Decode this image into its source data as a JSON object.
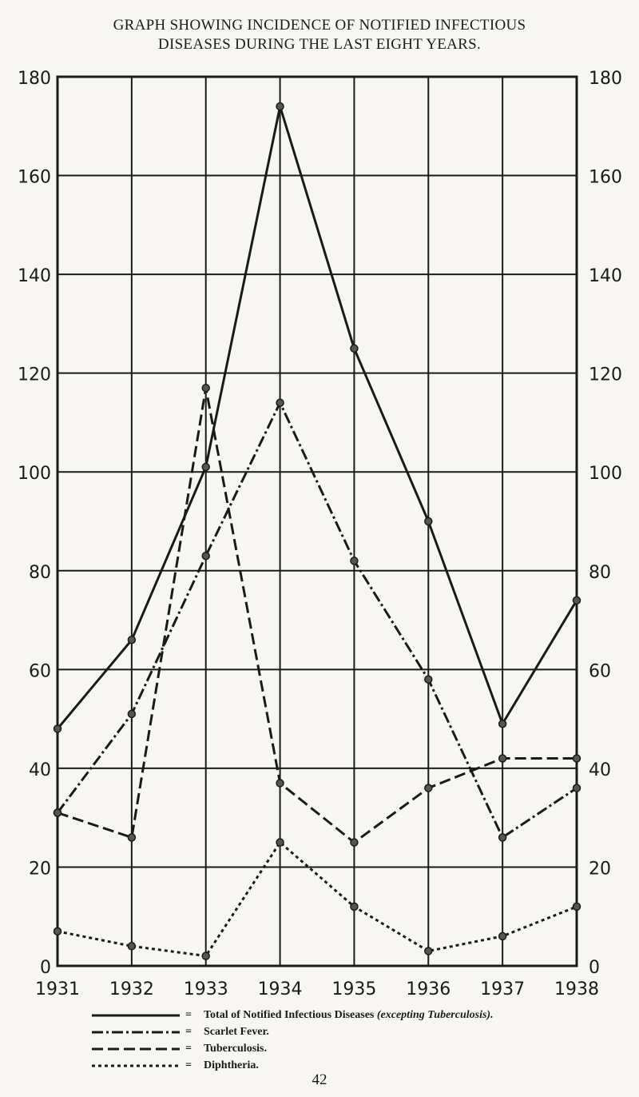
{
  "title_line1": "GRAPH SHOWING INCIDENCE OF NOTIFIED INFECTIOUS",
  "title_line2": "DISEASES DURING THE LAST EIGHT YEARS.",
  "page_number": "42",
  "legend": [
    {
      "eq": "=",
      "label": "Total of Notified Infectious Diseases",
      "note": "(excepting Tuberculosis).",
      "style": "solid"
    },
    {
      "eq": "=",
      "label": "Scarlet Fever.",
      "note": "",
      "style": "dashdot"
    },
    {
      "eq": "=",
      "label": "Tuberculosis.",
      "note": "",
      "style": "dashed"
    },
    {
      "eq": "=",
      "label": "Diphtheria.",
      "note": "",
      "style": "dotted"
    }
  ],
  "chart_data": {
    "type": "line",
    "title": "GRAPH SHOWING INCIDENCE OF NOTIFIED INFECTIOUS DISEASES DURING THE LAST EIGHT YEARS.",
    "x": [
      "1931",
      "1932",
      "1933",
      "1934",
      "1935",
      "1936",
      "1937",
      "1938"
    ],
    "y_ticks": [
      "0",
      "20",
      "40",
      "60",
      "80",
      "100",
      "120",
      "140",
      "160",
      "180"
    ],
    "ylim": [
      0,
      180
    ],
    "grid": true,
    "legend_position": "bottom",
    "series": [
      {
        "name": "Total of Notified Infectious Diseases (excepting Tuberculosis).",
        "style": "solid",
        "values": [
          48,
          66,
          101,
          174,
          125,
          90,
          49,
          74
        ]
      },
      {
        "name": "Scarlet Fever.",
        "style": "dashdot",
        "values": [
          31,
          51,
          83,
          114,
          82,
          58,
          26,
          36
        ]
      },
      {
        "name": "Tuberculosis.",
        "style": "dashed",
        "values": [
          31,
          26,
          117,
          37,
          25,
          36,
          42,
          42
        ]
      },
      {
        "name": "Diphtheria.",
        "style": "dotted",
        "values": [
          7,
          4,
          2,
          25,
          12,
          3,
          6,
          12
        ]
      }
    ]
  }
}
